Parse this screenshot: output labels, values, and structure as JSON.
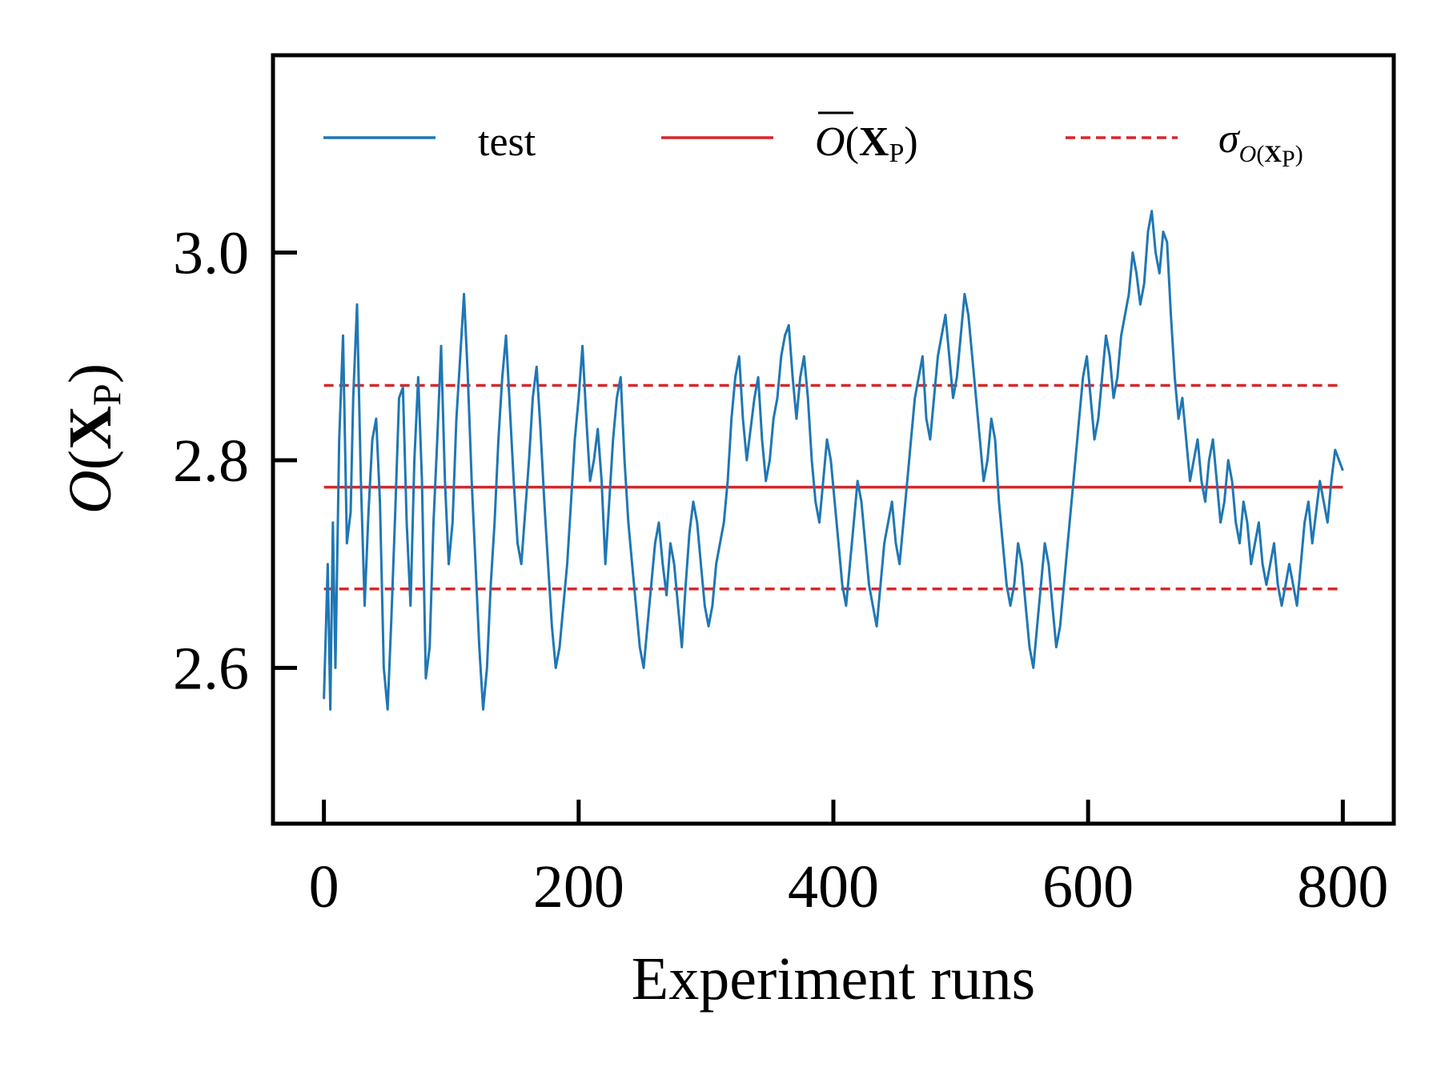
{
  "chart_data": {
    "type": "line",
    "xlabel": "Experiment runs",
    "ylabel": {
      "italic": "O",
      "open": "(",
      "bold": "X",
      "sub": "P",
      "close": ")"
    },
    "xlim": [
      -40,
      840
    ],
    "ylim": [
      2.45,
      3.19
    ],
    "xticks": [
      0,
      200,
      400,
      600,
      800
    ],
    "xtick_labels": [
      "0",
      "200",
      "400",
      "600",
      "800"
    ],
    "yticks": [
      2.6,
      2.8,
      3.0
    ],
    "ytick_labels": [
      "2.6",
      "2.8",
      "3.0"
    ],
    "grid": false,
    "legend_position": "top, 3 columns",
    "mean": 2.774,
    "sigma_upper": 2.872,
    "sigma_lower": 2.676,
    "series": [
      {
        "name": "test",
        "color": "#1f77b4",
        "style": "solid",
        "points": [
          [
            0,
            2.57
          ],
          [
            3,
            2.7
          ],
          [
            5,
            2.56
          ],
          [
            7,
            2.74
          ],
          [
            9,
            2.6
          ],
          [
            12,
            2.82
          ],
          [
            15,
            2.92
          ],
          [
            18,
            2.72
          ],
          [
            21,
            2.75
          ],
          [
            23,
            2.86
          ],
          [
            26,
            2.95
          ],
          [
            29,
            2.78
          ],
          [
            32,
            2.66
          ],
          [
            35,
            2.75
          ],
          [
            38,
            2.82
          ],
          [
            41,
            2.84
          ],
          [
            44,
            2.76
          ],
          [
            47,
            2.6
          ],
          [
            50,
            2.56
          ],
          [
            53,
            2.65
          ],
          [
            56,
            2.75
          ],
          [
            59,
            2.86
          ],
          [
            62,
            2.87
          ],
          [
            65,
            2.74
          ],
          [
            68,
            2.66
          ],
          [
            71,
            2.8
          ],
          [
            74,
            2.88
          ],
          [
            77,
            2.78
          ],
          [
            80,
            2.59
          ],
          [
            83,
            2.62
          ],
          [
            86,
            2.74
          ],
          [
            89,
            2.82
          ],
          [
            92,
            2.91
          ],
          [
            95,
            2.78
          ],
          [
            98,
            2.7
          ],
          [
            101,
            2.74
          ],
          [
            104,
            2.84
          ],
          [
            107,
            2.9
          ],
          [
            110,
            2.96
          ],
          [
            113,
            2.88
          ],
          [
            116,
            2.78
          ],
          [
            119,
            2.7
          ],
          [
            122,
            2.62
          ],
          [
            125,
            2.56
          ],
          [
            128,
            2.6
          ],
          [
            131,
            2.68
          ],
          [
            134,
            2.74
          ],
          [
            137,
            2.82
          ],
          [
            140,
            2.88
          ],
          [
            143,
            2.92
          ],
          [
            146,
            2.85
          ],
          [
            149,
            2.78
          ],
          [
            152,
            2.72
          ],
          [
            155,
            2.7
          ],
          [
            158,
            2.75
          ],
          [
            161,
            2.8
          ],
          [
            164,
            2.86
          ],
          [
            167,
            2.89
          ],
          [
            170,
            2.83
          ],
          [
            173,
            2.76
          ],
          [
            176,
            2.7
          ],
          [
            179,
            2.64
          ],
          [
            182,
            2.6
          ],
          [
            185,
            2.62
          ],
          [
            188,
            2.66
          ],
          [
            191,
            2.7
          ],
          [
            194,
            2.76
          ],
          [
            197,
            2.82
          ],
          [
            200,
            2.86
          ],
          [
            203,
            2.91
          ],
          [
            206,
            2.84
          ],
          [
            209,
            2.78
          ],
          [
            212,
            2.8
          ],
          [
            215,
            2.83
          ],
          [
            218,
            2.78
          ],
          [
            221,
            2.7
          ],
          [
            224,
            2.76
          ],
          [
            227,
            2.82
          ],
          [
            230,
            2.86
          ],
          [
            233,
            2.88
          ],
          [
            236,
            2.8
          ],
          [
            239,
            2.74
          ],
          [
            242,
            2.7
          ],
          [
            245,
            2.66
          ],
          [
            248,
            2.62
          ],
          [
            251,
            2.6
          ],
          [
            254,
            2.64
          ],
          [
            257,
            2.68
          ],
          [
            260,
            2.72
          ],
          [
            263,
            2.74
          ],
          [
            266,
            2.7
          ],
          [
            269,
            2.67
          ],
          [
            272,
            2.72
          ],
          [
            275,
            2.7
          ],
          [
            278,
            2.66
          ],
          [
            281,
            2.62
          ],
          [
            284,
            2.68
          ],
          [
            287,
            2.73
          ],
          [
            290,
            2.76
          ],
          [
            293,
            2.74
          ],
          [
            296,
            2.7
          ],
          [
            299,
            2.66
          ],
          [
            302,
            2.64
          ],
          [
            305,
            2.66
          ],
          [
            308,
            2.7
          ],
          [
            311,
            2.72
          ],
          [
            314,
            2.74
          ],
          [
            317,
            2.78
          ],
          [
            320,
            2.84
          ],
          [
            323,
            2.88
          ],
          [
            326,
            2.9
          ],
          [
            329,
            2.84
          ],
          [
            332,
            2.8
          ],
          [
            335,
            2.83
          ],
          [
            338,
            2.86
          ],
          [
            341,
            2.88
          ],
          [
            344,
            2.82
          ],
          [
            347,
            2.78
          ],
          [
            350,
            2.8
          ],
          [
            353,
            2.84
          ],
          [
            356,
            2.86
          ],
          [
            359,
            2.9
          ],
          [
            362,
            2.92
          ],
          [
            365,
            2.93
          ],
          [
            368,
            2.88
          ],
          [
            371,
            2.84
          ],
          [
            374,
            2.88
          ],
          [
            377,
            2.9
          ],
          [
            380,
            2.86
          ],
          [
            383,
            2.8
          ],
          [
            386,
            2.76
          ],
          [
            389,
            2.74
          ],
          [
            392,
            2.78
          ],
          [
            395,
            2.82
          ],
          [
            398,
            2.8
          ],
          [
            401,
            2.76
          ],
          [
            404,
            2.72
          ],
          [
            407,
            2.68
          ],
          [
            410,
            2.66
          ],
          [
            413,
            2.7
          ],
          [
            416,
            2.74
          ],
          [
            419,
            2.78
          ],
          [
            422,
            2.76
          ],
          [
            425,
            2.72
          ],
          [
            428,
            2.68
          ],
          [
            431,
            2.66
          ],
          [
            434,
            2.64
          ],
          [
            437,
            2.68
          ],
          [
            440,
            2.72
          ],
          [
            443,
            2.74
          ],
          [
            446,
            2.76
          ],
          [
            449,
            2.72
          ],
          [
            452,
            2.7
          ],
          [
            455,
            2.74
          ],
          [
            458,
            2.78
          ],
          [
            461,
            2.82
          ],
          [
            464,
            2.86
          ],
          [
            467,
            2.88
          ],
          [
            470,
            2.9
          ],
          [
            473,
            2.84
          ],
          [
            476,
            2.82
          ],
          [
            479,
            2.86
          ],
          [
            482,
            2.9
          ],
          [
            485,
            2.92
          ],
          [
            488,
            2.94
          ],
          [
            491,
            2.9
          ],
          [
            494,
            2.86
          ],
          [
            497,
            2.88
          ],
          [
            500,
            2.92
          ],
          [
            503,
            2.96
          ],
          [
            506,
            2.94
          ],
          [
            509,
            2.9
          ],
          [
            512,
            2.86
          ],
          [
            515,
            2.82
          ],
          [
            518,
            2.78
          ],
          [
            521,
            2.8
          ],
          [
            524,
            2.84
          ],
          [
            527,
            2.82
          ],
          [
            530,
            2.76
          ],
          [
            533,
            2.72
          ],
          [
            536,
            2.68
          ],
          [
            539,
            2.66
          ],
          [
            542,
            2.68
          ],
          [
            545,
            2.72
          ],
          [
            548,
            2.7
          ],
          [
            551,
            2.66
          ],
          [
            554,
            2.62
          ],
          [
            557,
            2.6
          ],
          [
            560,
            2.64
          ],
          [
            563,
            2.68
          ],
          [
            566,
            2.72
          ],
          [
            569,
            2.7
          ],
          [
            572,
            2.66
          ],
          [
            575,
            2.62
          ],
          [
            578,
            2.64
          ],
          [
            581,
            2.68
          ],
          [
            584,
            2.72
          ],
          [
            587,
            2.76
          ],
          [
            590,
            2.8
          ],
          [
            593,
            2.84
          ],
          [
            596,
            2.88
          ],
          [
            599,
            2.9
          ],
          [
            602,
            2.86
          ],
          [
            605,
            2.82
          ],
          [
            608,
            2.84
          ],
          [
            611,
            2.88
          ],
          [
            614,
            2.92
          ],
          [
            617,
            2.9
          ],
          [
            620,
            2.86
          ],
          [
            623,
            2.88
          ],
          [
            626,
            2.92
          ],
          [
            629,
            2.94
          ],
          [
            632,
            2.96
          ],
          [
            635,
            3.0
          ],
          [
            638,
            2.98
          ],
          [
            641,
            2.95
          ],
          [
            644,
            2.97
          ],
          [
            647,
            3.02
          ],
          [
            650,
            3.04
          ],
          [
            653,
            3.0
          ],
          [
            656,
            2.98
          ],
          [
            659,
            3.02
          ],
          [
            662,
            3.01
          ],
          [
            665,
            2.94
          ],
          [
            668,
            2.88
          ],
          [
            671,
            2.84
          ],
          [
            674,
            2.86
          ],
          [
            677,
            2.82
          ],
          [
            680,
            2.78
          ],
          [
            683,
            2.8
          ],
          [
            686,
            2.82
          ],
          [
            689,
            2.78
          ],
          [
            692,
            2.76
          ],
          [
            695,
            2.8
          ],
          [
            698,
            2.82
          ],
          [
            701,
            2.78
          ],
          [
            704,
            2.74
          ],
          [
            707,
            2.76
          ],
          [
            710,
            2.8
          ],
          [
            713,
            2.78
          ],
          [
            716,
            2.74
          ],
          [
            719,
            2.72
          ],
          [
            722,
            2.76
          ],
          [
            725,
            2.74
          ],
          [
            728,
            2.7
          ],
          [
            731,
            2.72
          ],
          [
            734,
            2.74
          ],
          [
            737,
            2.7
          ],
          [
            740,
            2.68
          ],
          [
            743,
            2.7
          ],
          [
            746,
            2.72
          ],
          [
            749,
            2.68
          ],
          [
            752,
            2.66
          ],
          [
            755,
            2.68
          ],
          [
            758,
            2.7
          ],
          [
            761,
            2.68
          ],
          [
            764,
            2.66
          ],
          [
            767,
            2.7
          ],
          [
            770,
            2.74
          ],
          [
            773,
            2.76
          ],
          [
            776,
            2.72
          ],
          [
            779,
            2.75
          ],
          [
            782,
            2.78
          ],
          [
            785,
            2.76
          ],
          [
            788,
            2.74
          ],
          [
            791,
            2.78
          ],
          [
            794,
            2.81
          ],
          [
            797,
            2.8
          ],
          [
            800,
            2.79
          ]
        ]
      },
      {
        "name": "mean",
        "label": {
          "italic": "O",
          "open": "(",
          "bold": "X",
          "sub": "P",
          "close": ")"
        },
        "color": "#d62728",
        "style": "solid"
      },
      {
        "name": "sigma",
        "label": {
          "symbol": "σ",
          "sub_italic": "O",
          "sub_open": "(",
          "sub_bold": "X",
          "sub_sub": "P",
          "sub_close": ")"
        },
        "color": "#d62728",
        "style": "dashed"
      }
    ]
  }
}
